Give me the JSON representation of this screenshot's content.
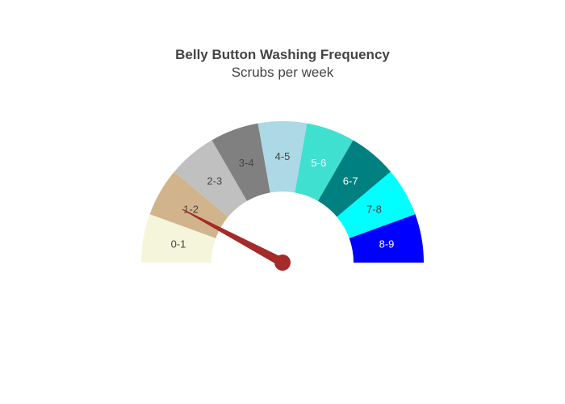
{
  "chart_data": {
    "type": "gauge",
    "title": "Belly Button Washing Frequency",
    "subtitle": "Scrubs per week",
    "range": [
      0,
      9
    ],
    "value": 1.4,
    "segments": [
      {
        "label": "0-1",
        "from": 0,
        "to": 1,
        "color": "#f5f5dc",
        "text_color": "#444444"
      },
      {
        "label": "1-2",
        "from": 1,
        "to": 2,
        "color": "#d2b48c",
        "text_color": "#444444"
      },
      {
        "label": "2-3",
        "from": 2,
        "to": 3,
        "color": "#c0c0c0",
        "text_color": "#444444"
      },
      {
        "label": "3-4",
        "from": 3,
        "to": 4,
        "color": "#808080",
        "text_color": "#444444"
      },
      {
        "label": "4-5",
        "from": 4,
        "to": 5,
        "color": "#add8e6",
        "text_color": "#444444"
      },
      {
        "label": "5-6",
        "from": 5,
        "to": 6,
        "color": "#40e0d0",
        "text_color": "#ffffff"
      },
      {
        "label": "6-7",
        "from": 6,
        "to": 7,
        "color": "#008080",
        "text_color": "#ffffff"
      },
      {
        "label": "7-8",
        "from": 7,
        "to": 8,
        "color": "#00ffff",
        "text_color": "#444444"
      },
      {
        "label": "8-9",
        "from": 8,
        "to": 9,
        "color": "#0000ff",
        "text_color": "#ffffff"
      }
    ],
    "needle_color": "#a52a2a"
  }
}
